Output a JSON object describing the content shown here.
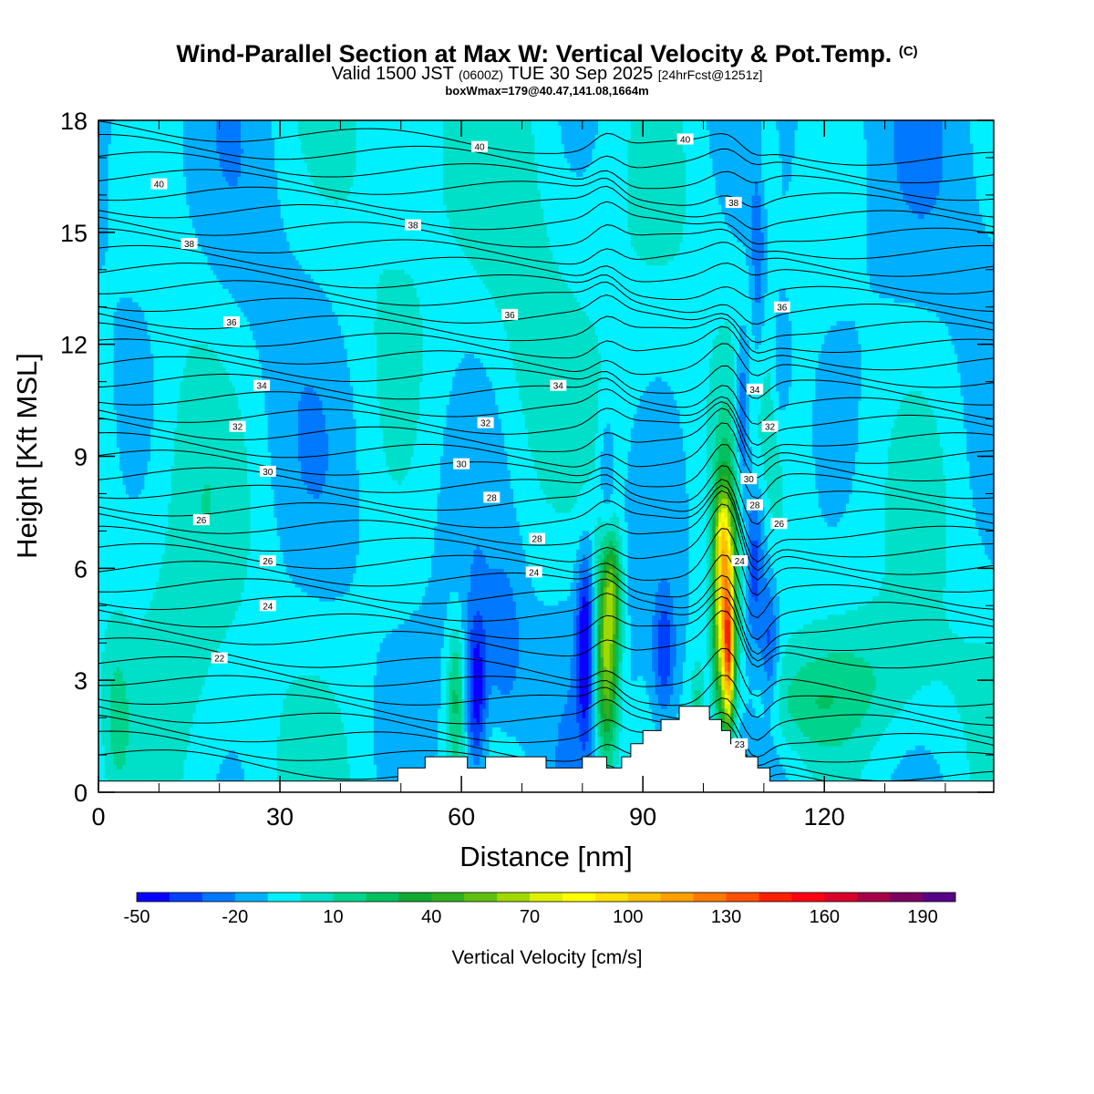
{
  "header": {
    "title": "Wind-Parallel Section at Max W: Vertical Velocity & Pot.Temp.",
    "copyright": "(C)",
    "valid_prefix": "Valid 1500 JST",
    "valid_utc": "(0600Z)",
    "valid_date": "TUE 30 Sep 2025",
    "forecast": "[24hrFcst@1251z]",
    "box_info": "boxWmax=179@40.47,141.08,1664m"
  },
  "colors": {
    "background_field": "#00f0ff",
    "colorbar": [
      "#0a00ff",
      "#0040ff",
      "#0078ff",
      "#00b0ff",
      "#00f0ff",
      "#00e0c8",
      "#00d48c",
      "#00c060",
      "#10aa30",
      "#30b020",
      "#60c010",
      "#a0d800",
      "#e0f000",
      "#ffff00",
      "#ffe000",
      "#ffc000",
      "#ffa000",
      "#ff7800",
      "#ff5000",
      "#ff2000",
      "#ff0010",
      "#d8002a",
      "#a80048",
      "#7c0060",
      "#580088"
    ]
  },
  "chart_data": {
    "type": "heatmap",
    "title": "Wind-Parallel Section at Max W: Vertical Velocity & Pot.Temp.",
    "xlabel": "Distance [nm]",
    "ylabel": "Height [Kft MSL]",
    "xlim": [
      0,
      148
    ],
    "ylim": [
      0,
      18
    ],
    "x_ticks": [
      0,
      30,
      60,
      90,
      120
    ],
    "y_ticks": [
      0,
      3,
      6,
      9,
      12,
      15,
      18
    ],
    "colorbar": {
      "label": "Vertical Velocity [cm/s]",
      "levels_start": -50,
      "level_step": 10,
      "level_count": 25,
      "tick_labels": [
        "-50",
        "-20",
        "10",
        "40",
        "70",
        "100",
        "130",
        "160",
        "190"
      ]
    },
    "terrain_steps": [
      [
        0,
        0.3
      ],
      [
        49.5,
        0.3
      ],
      [
        49.5,
        0.65
      ],
      [
        54,
        0.65
      ],
      [
        54,
        0.95
      ],
      [
        61,
        0.95
      ],
      [
        61,
        0.65
      ],
      [
        64,
        0.65
      ],
      [
        64,
        0.95
      ],
      [
        74,
        0.95
      ],
      [
        74,
        0.65
      ],
      [
        80,
        0.65
      ],
      [
        80,
        0.95
      ],
      [
        84,
        0.95
      ],
      [
        84,
        0.65
      ],
      [
        86.5,
        0.65
      ],
      [
        86.5,
        0.95
      ],
      [
        88,
        0.95
      ],
      [
        88,
        1.3
      ],
      [
        90,
        1.3
      ],
      [
        90,
        1.65
      ],
      [
        93,
        1.65
      ],
      [
        93,
        1.95
      ],
      [
        96,
        1.95
      ],
      [
        96,
        2.3
      ],
      [
        101,
        2.3
      ],
      [
        101,
        1.95
      ],
      [
        103,
        1.95
      ],
      [
        103,
        1.65
      ],
      [
        104.5,
        1.65
      ],
      [
        104.5,
        1.3
      ],
      [
        107,
        1.3
      ],
      [
        107,
        0.95
      ],
      [
        109,
        0.95
      ],
      [
        109,
        0.65
      ],
      [
        111,
        0.65
      ],
      [
        111,
        0.3
      ],
      [
        148,
        0.3
      ],
      [
        148,
        0
      ],
      [
        0,
        0
      ]
    ],
    "vertical_velocity_features": [
      {
        "x": 84,
        "z": 3.5,
        "sx": 1.4,
        "sz": 2.0,
        "w": 75
      },
      {
        "x": 85,
        "z": 5.5,
        "sx": 1.0,
        "sz": 1.0,
        "w": 35
      },
      {
        "x": 103.5,
        "z": 5.0,
        "sx": 1.3,
        "sz": 2.3,
        "w": 110
      },
      {
        "x": 104.2,
        "z": 3.6,
        "sx": 0.55,
        "sz": 1.3,
        "w": 75
      },
      {
        "x": 103.0,
        "z": 6.8,
        "sx": 0.8,
        "sz": 0.8,
        "w": 25
      },
      {
        "x": 80.5,
        "z": 4.0,
        "sx": 1.0,
        "sz": 1.6,
        "w": -45
      },
      {
        "x": 62.5,
        "z": 2.6,
        "sx": 1.2,
        "sz": 1.6,
        "w": -40
      },
      {
        "x": 67,
        "z": 3.8,
        "sx": 2.2,
        "sz": 1.5,
        "w": -18
      },
      {
        "x": 93.5,
        "z": 3.7,
        "sx": 1.3,
        "sz": 1.2,
        "w": -30
      },
      {
        "x": 106.5,
        "z": 10.0,
        "sx": 0.9,
        "sz": 1.6,
        "w": -35
      },
      {
        "x": 108.5,
        "z": 6.3,
        "sx": 1.2,
        "sz": 1.6,
        "w": -35
      },
      {
        "x": 111,
        "z": 4.0,
        "sx": 1.0,
        "sz": 1.3,
        "w": -25
      },
      {
        "x": 109,
        "z": 14.5,
        "sx": 0.8,
        "sz": 2.5,
        "w": -20
      },
      {
        "x": 113,
        "z": 11.5,
        "sx": 1.0,
        "sz": 1.2,
        "w": -18
      },
      {
        "x": 84,
        "z": 8.4,
        "sx": 0.8,
        "sz": 1.2,
        "w": -18
      },
      {
        "x": 59,
        "z": 2.6,
        "sx": 1.0,
        "sz": 1.4,
        "w": 30
      },
      {
        "x": 99,
        "z": 2.5,
        "sx": 0.8,
        "sz": 0.8,
        "w": 22
      },
      {
        "x": 116,
        "z": 2.3,
        "sx": 6,
        "sz": 0.9,
        "w": 15
      },
      {
        "x": 127,
        "z": 3.0,
        "sx": 10,
        "sz": 1.2,
        "w": 12
      },
      {
        "x": 110,
        "z": 17.2,
        "sx": 1.5,
        "sz": 1.2,
        "w": 20
      },
      {
        "x": 3,
        "z": 2.0,
        "sx": 1.5,
        "sz": 1.5,
        "w": 15
      },
      {
        "x": 15,
        "z": 9.0,
        "sx": 5,
        "sz": 5,
        "w": 12
      },
      {
        "x": 48,
        "z": 14,
        "sx": 7,
        "sz": 4,
        "w": 12
      },
      {
        "x": 70,
        "z": 11,
        "sx": 5,
        "sz": 4,
        "w": 12
      }
    ],
    "isentrope_levels": [
      22,
      24,
      26,
      28,
      30,
      32,
      34,
      36,
      38,
      40
    ],
    "isentrope_labels": [
      {
        "text": "40",
        "x": 10,
        "z": 16.3
      },
      {
        "text": "40",
        "x": 63,
        "z": 17.3
      },
      {
        "text": "40",
        "x": 97,
        "z": 17.5
      },
      {
        "text": "38",
        "x": 15,
        "z": 14.7
      },
      {
        "text": "38",
        "x": 52,
        "z": 15.2
      },
      {
        "text": "38",
        "x": 105,
        "z": 15.8
      },
      {
        "text": "36",
        "x": 22,
        "z": 12.6
      },
      {
        "text": "36",
        "x": 68,
        "z": 12.8
      },
      {
        "text": "36",
        "x": 113,
        "z": 13.0
      },
      {
        "text": "34",
        "x": 27,
        "z": 10.9
      },
      {
        "text": "34",
        "x": 76,
        "z": 10.9
      },
      {
        "text": "34",
        "x": 108.5,
        "z": 10.8
      },
      {
        "text": "32",
        "x": 23,
        "z": 9.8
      },
      {
        "text": "32",
        "x": 64,
        "z": 9.9
      },
      {
        "text": "32",
        "x": 111,
        "z": 9.8
      },
      {
        "text": "30",
        "x": 28,
        "z": 8.6
      },
      {
        "text": "30",
        "x": 60,
        "z": 8.8
      },
      {
        "text": "30",
        "x": 107.5,
        "z": 8.4
      },
      {
        "text": "28",
        "x": 65,
        "z": 7.9
      },
      {
        "text": "28",
        "x": 72.5,
        "z": 6.8
      },
      {
        "text": "28",
        "x": 108.5,
        "z": 7.7
      },
      {
        "text": "26",
        "x": 17,
        "z": 7.3
      },
      {
        "text": "26",
        "x": 28,
        "z": 6.2
      },
      {
        "text": "26",
        "x": 112.5,
        "z": 7.2
      },
      {
        "text": "24",
        "x": 28,
        "z": 5.0
      },
      {
        "text": "24",
        "x": 72,
        "z": 5.9
      },
      {
        "text": "24",
        "x": 106,
        "z": 6.2
      },
      {
        "text": "22",
        "x": 20,
        "z": 3.6
      },
      {
        "text": "23",
        "x": 106,
        "z": 1.3
      }
    ]
  }
}
